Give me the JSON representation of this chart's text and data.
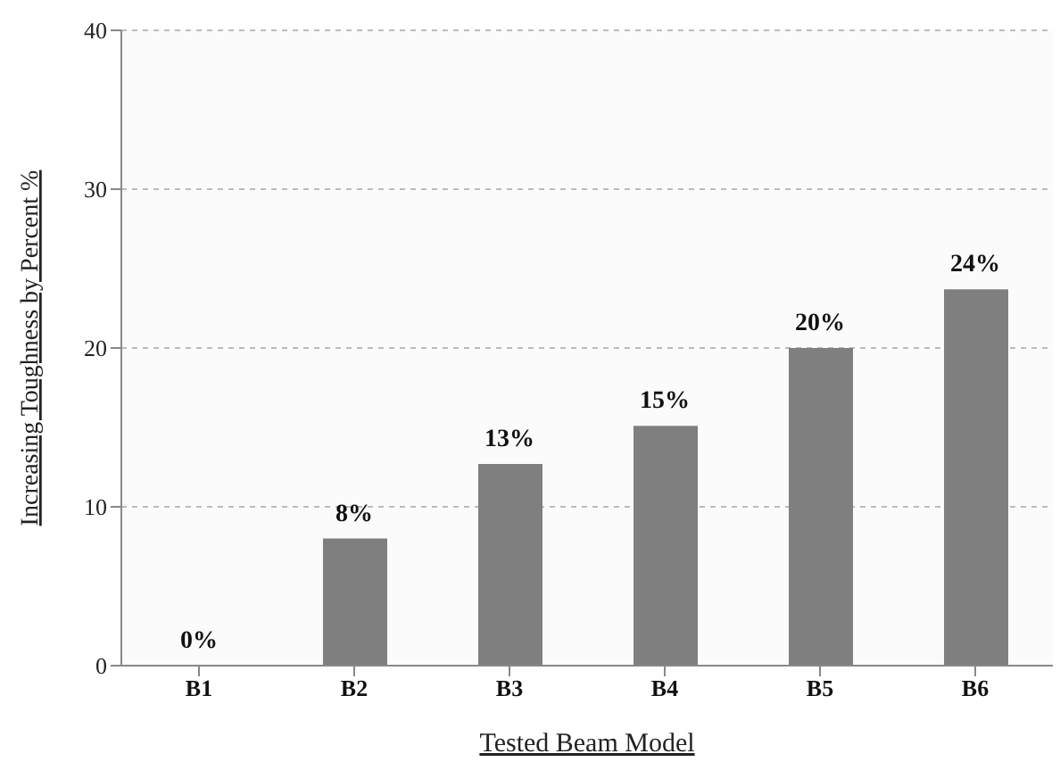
{
  "chart_data": {
    "type": "bar",
    "xlabel": "Tested Beam Model",
    "ylabel": "Increasing Toughness by Percent %",
    "categories": [
      "B1",
      "B2",
      "B3",
      "B4",
      "B5",
      "B6"
    ],
    "values": [
      0,
      8,
      12.7,
      15.1,
      20,
      23.7
    ],
    "value_labels": [
      "0%",
      "8%",
      "13%",
      "15%",
      "20%",
      "24%"
    ],
    "color": "#7f7f7f",
    "ylim": [
      0,
      40
    ],
    "yticks": [
      0,
      10,
      20,
      30,
      40
    ],
    "grid": "y",
    "legend": false
  }
}
